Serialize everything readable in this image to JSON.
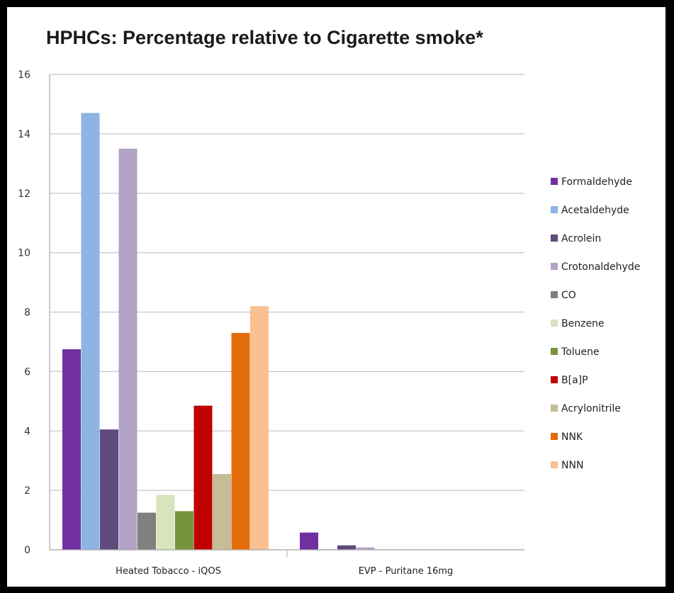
{
  "chart_data": {
    "type": "bar",
    "title": "HPHCs: Percentage relative to Cigarette smoke*",
    "xlabel": "",
    "ylabel": "",
    "ylim": [
      0,
      16
    ],
    "yticks": [
      0,
      2,
      4,
      6,
      8,
      10,
      12,
      14,
      16
    ],
    "grid": true,
    "legend_position": "right",
    "categories": [
      "Heated Tobacco - iQOS",
      "EVP - Puritane 16mg"
    ],
    "series": [
      {
        "name": "Formaldehyde",
        "color": "#7030A0",
        "values": [
          6.75,
          0.58
        ]
      },
      {
        "name": "Acetaldehyde",
        "color": "#8DB4E2",
        "values": [
          14.7,
          0.02
        ]
      },
      {
        "name": "Acrolein",
        "color": "#604A7B",
        "values": [
          4.05,
          0.15
        ]
      },
      {
        "name": "Crotonaldehyde",
        "color": "#B3A2C7",
        "values": [
          13.5,
          0.08
        ]
      },
      {
        "name": "CO",
        "color": "#7F7F7F",
        "values": [
          1.25,
          0
        ]
      },
      {
        "name": "Benzene",
        "color": "#D7E4BD",
        "values": [
          1.85,
          0
        ]
      },
      {
        "name": "Toluene",
        "color": "#77933C",
        "values": [
          1.3,
          0
        ]
      },
      {
        "name": "B[a]P",
        "color": "#C00000",
        "values": [
          4.85,
          0
        ]
      },
      {
        "name": "Acrylonitrile",
        "color": "#C4BD97",
        "values": [
          2.55,
          0
        ]
      },
      {
        "name": "NNK",
        "color": "#E46C0A",
        "values": [
          7.3,
          0
        ]
      },
      {
        "name": "NNN",
        "color": "#FAC090",
        "values": [
          8.2,
          0
        ]
      }
    ]
  }
}
